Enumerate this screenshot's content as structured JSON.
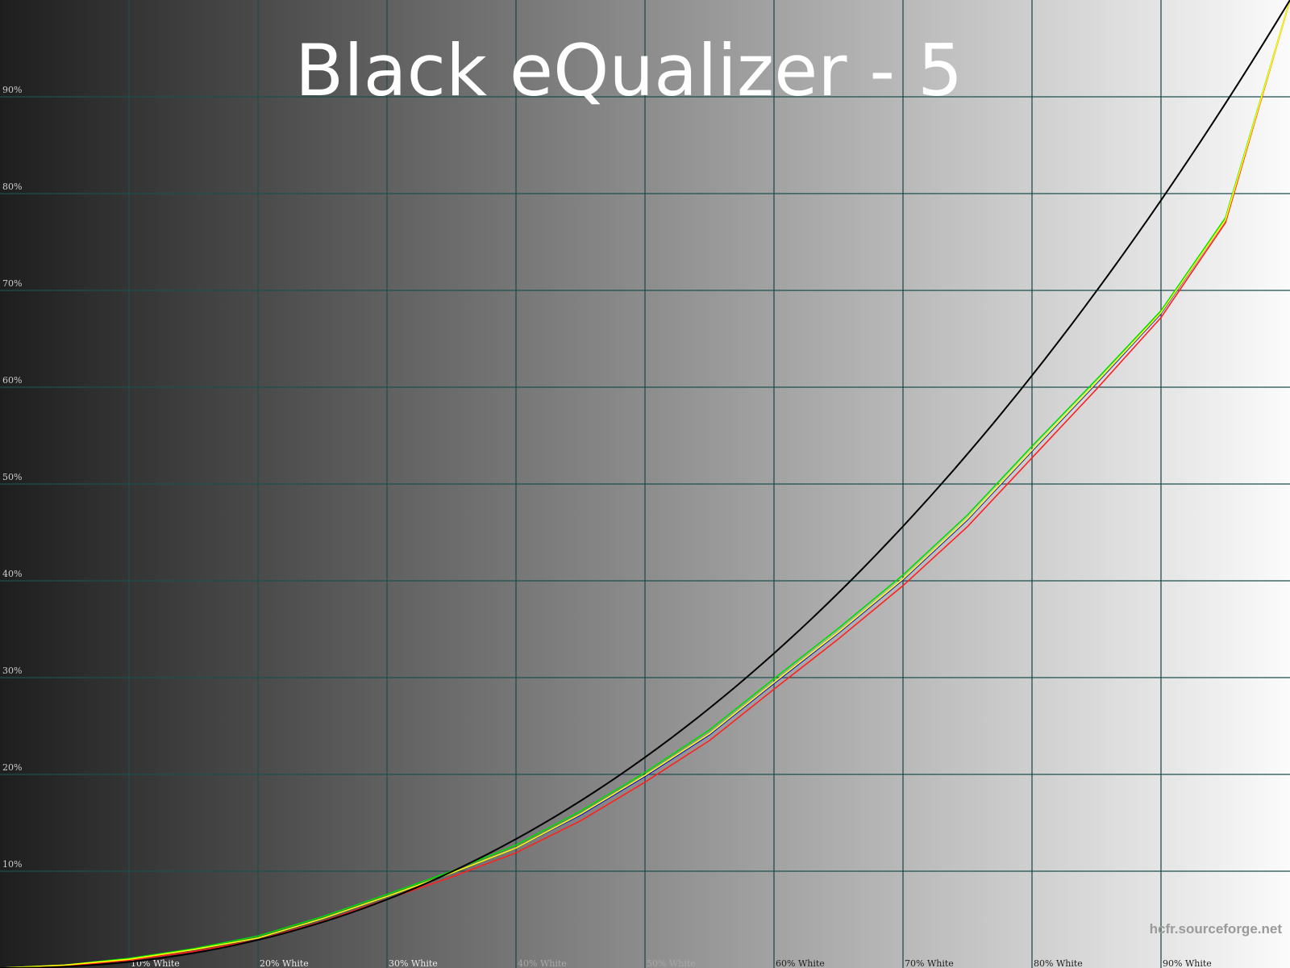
{
  "chart_data": {
    "type": "line",
    "title": "Black eQualizer - 5",
    "watermark": "hcfr.sourceforge.net",
    "xlim": [
      0,
      100
    ],
    "ylim": [
      0,
      100
    ],
    "grid": true,
    "x_tick_labels": [
      "10% White",
      "20% White",
      "30% White",
      "40% White",
      "50% White",
      "60% White",
      "70% White",
      "80% White",
      "90% White"
    ],
    "x_ticks": [
      10,
      20,
      30,
      40,
      50,
      60,
      70,
      80,
      90
    ],
    "y_tick_labels": [
      "10%",
      "20%",
      "30%",
      "40%",
      "50%",
      "60%",
      "70%",
      "80%",
      "90%"
    ],
    "y_ticks": [
      10,
      20,
      30,
      40,
      50,
      60,
      70,
      80,
      90
    ],
    "reference": {
      "gamma": 2.2,
      "color": "#000000"
    },
    "x": [
      0,
      5,
      10,
      15,
      20,
      25,
      30,
      35,
      40,
      45,
      50,
      55,
      60,
      65,
      70,
      75,
      80,
      85,
      90,
      95,
      100
    ],
    "series": [
      {
        "color": "#0000ff",
        "values": [
          0,
          0.3,
          0.9,
          1.9,
          3.1,
          5.1,
          7.4,
          9.8,
          12.4,
          15.8,
          19.8,
          24.1,
          29.4,
          34.6,
          40.1,
          46.3,
          53.4,
          60.4,
          67.6,
          77.3,
          100
        ]
      },
      {
        "color": "#00dd00",
        "values": [
          0,
          0.3,
          1.0,
          2.0,
          3.3,
          5.3,
          7.6,
          10.0,
          12.7,
          16.2,
          20.2,
          24.6,
          29.9,
          35.1,
          40.6,
          46.8,
          53.9,
          60.8,
          67.9,
          77.5,
          100
        ]
      },
      {
        "color": "#ff2020",
        "values": [
          0,
          0.2,
          0.8,
          1.7,
          2.9,
          4.8,
          7.1,
          9.4,
          11.9,
          15.2,
          19.2,
          23.5,
          28.8,
          34.0,
          39.5,
          45.6,
          52.7,
          59.8,
          67.2,
          77.0,
          100
        ]
      },
      {
        "color": "#ffff00",
        "values": [
          0,
          0.3,
          0.9,
          1.9,
          3.1,
          5.1,
          7.4,
          9.8,
          12.4,
          15.9,
          19.9,
          24.2,
          29.5,
          34.7,
          40.2,
          46.4,
          53.5,
          60.5,
          67.7,
          77.3,
          100
        ]
      }
    ],
    "background": {
      "from": "#1e1e1e",
      "to": "#fbfbfb"
    },
    "grid_color": "#1f4c52"
  }
}
